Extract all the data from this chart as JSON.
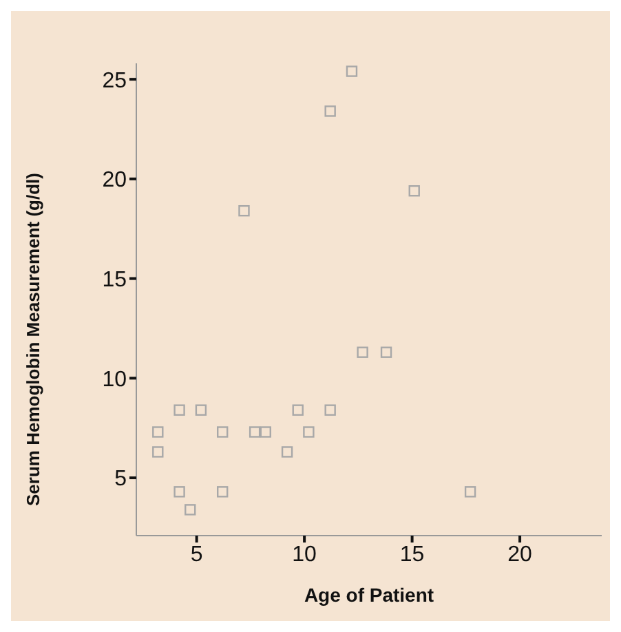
{
  "chart_data": {
    "type": "scatter",
    "xlabel": "Age of Patient",
    "ylabel": "Serum Hemoglobin Measurement (g/dl)",
    "x": [
      12.2,
      11.2,
      15.1,
      7.2,
      12.7,
      13.8,
      4.2,
      5.2,
      9.7,
      11.2,
      3.2,
      6.2,
      7.7,
      8.2,
      10.2,
      3.2,
      9.2,
      4.2,
      6.2,
      4.7,
      17.7
    ],
    "values": [
      25.4,
      23.4,
      19.4,
      18.4,
      11.3,
      11.3,
      8.4,
      8.4,
      8.4,
      8.4,
      7.3,
      7.3,
      7.3,
      7.3,
      7.3,
      6.3,
      6.3,
      4.3,
      4.3,
      3.4,
      4.3
    ],
    "color": "#a8a8a8",
    "marker": "square",
    "grid": false,
    "legend": false,
    "xlim": [
      2.2,
      23.8
    ],
    "xticks": [
      5,
      10,
      15,
      20
    ],
    "ylim": [
      2.1,
      25.8
    ],
    "yticks": [
      5,
      10,
      15,
      20,
      25
    ]
  }
}
